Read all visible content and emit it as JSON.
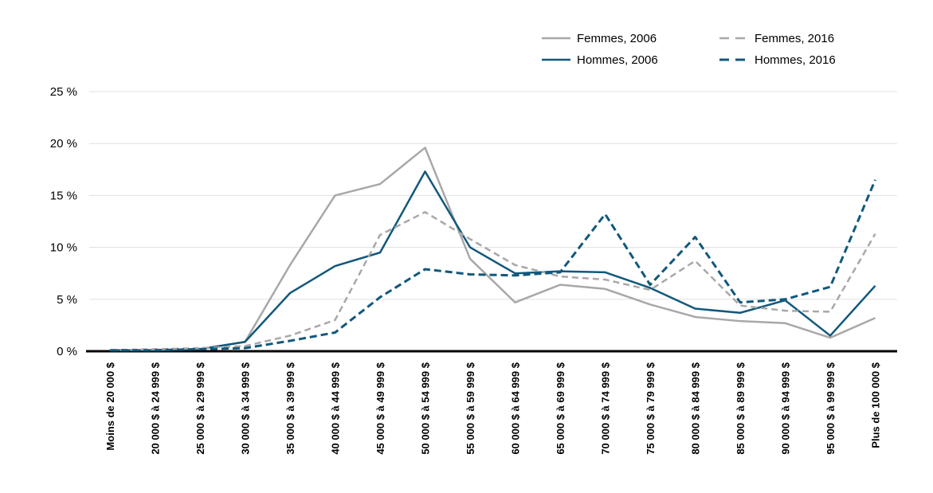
{
  "chart_data": {
    "type": "line",
    "title": "",
    "xlabel": "",
    "ylabel": "",
    "ylim": [
      0,
      25
    ],
    "grid": true,
    "legend_position": "top-right",
    "y_ticks": [
      {
        "value": 0,
        "label": "0 %"
      },
      {
        "value": 5,
        "label": "5 %"
      },
      {
        "value": 10,
        "label": "10 %"
      },
      {
        "value": 15,
        "label": "15 %"
      },
      {
        "value": 20,
        "label": "20 %"
      },
      {
        "value": 25,
        "label": "25 %"
      }
    ],
    "categories": [
      "Moins de 20 000 $",
      "20 000 $ à 24 999 $",
      "25 000 $ à 29 999 $",
      "30 000 $ à 34 999 $",
      "35 000 $ à 39 999 $",
      "40 000 $ à 44 999 $",
      "45 000 $ à 49 999 $",
      "50 000 $ à 54 999 $",
      "55 000 $ à 59 999 $",
      "60 000 $ à 64 999 $",
      "65 000 $ à 69 999 $",
      "70 000 $ à 74 999 $",
      "75 000 $ à 79 999 $",
      "80 000 $ à 84 999 $",
      "85 000 $ à 89 999 $",
      "90 000 $ à 94 999 $",
      "95 000 $ à 99 999 $",
      "Plus de 100 000 $"
    ],
    "series": [
      {
        "name": "Femmes, 2006",
        "color": "#a8a8a8",
        "style": "solid",
        "dash": "",
        "stroke_width": 2.5,
        "values": [
          0.1,
          0.1,
          0.2,
          0.9,
          8.3,
          15.0,
          16.1,
          19.6,
          8.9,
          4.7,
          6.4,
          6.0,
          4.5,
          3.3,
          2.9,
          2.7,
          1.3,
          3.2
        ]
      },
      {
        "name": "Hommes, 2006",
        "color": "#11587c",
        "style": "solid",
        "dash": "",
        "stroke_width": 2.5,
        "values": [
          0.1,
          0.1,
          0.2,
          0.9,
          5.6,
          8.2,
          9.5,
          17.3,
          10.0,
          7.5,
          7.7,
          7.6,
          6.1,
          4.1,
          3.7,
          4.9,
          1.5,
          6.3
        ]
      },
      {
        "name": "Femmes, 2016",
        "color": "#a8a8a8",
        "style": "dashed",
        "dash": "8 5",
        "stroke_width": 2.5,
        "values": [
          0.1,
          0.2,
          0.3,
          0.5,
          1.5,
          3.0,
          11.2,
          13.4,
          10.8,
          8.3,
          7.2,
          6.9,
          5.9,
          8.7,
          4.4,
          3.9,
          3.8,
          11.3
        ]
      },
      {
        "name": "Hommes, 2016",
        "color": "#11587c",
        "style": "dashed",
        "dash": "9 5",
        "stroke_width": 3,
        "values": [
          0.1,
          0.1,
          0.2,
          0.3,
          1.0,
          1.8,
          5.2,
          7.9,
          7.4,
          7.3,
          7.6,
          13.2,
          6.4,
          11.0,
          4.7,
          5.0,
          6.2,
          16.5
        ]
      }
    ]
  },
  "colors": {
    "gridline": "#e0e0e0",
    "axis": "#000000",
    "text": "#000000",
    "background": "#ffffff"
  },
  "layout_values": {
    "legend_columns": 2
  }
}
